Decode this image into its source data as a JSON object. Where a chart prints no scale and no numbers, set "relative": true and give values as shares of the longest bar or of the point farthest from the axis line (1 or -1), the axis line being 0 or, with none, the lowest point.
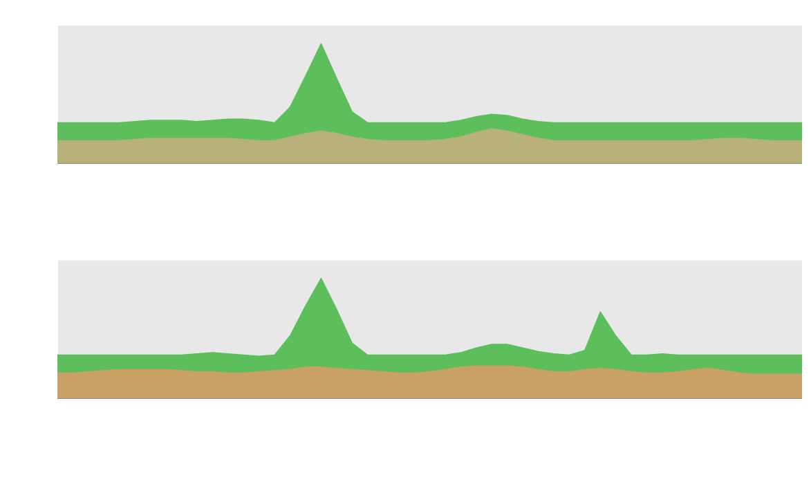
{
  "chart_data": [
    {
      "type": "area",
      "relative": true,
      "categories": [
        null,
        null,
        null,
        null,
        null,
        null,
        null,
        null,
        null,
        null,
        null,
        null,
        null,
        null,
        null,
        null,
        null,
        null,
        null,
        null,
        null,
        null,
        null,
        null,
        null,
        null,
        null,
        null,
        null,
        null,
        null,
        null,
        null,
        null,
        null,
        null,
        null,
        null,
        null,
        null,
        null,
        null,
        null,
        null,
        null,
        null,
        null,
        null,
        null
      ],
      "series": [
        {
          "color": "#5cbf5c",
          "values": [
            0.34,
            0.34,
            0.34,
            0.34,
            0.34,
            0.35,
            0.36,
            0.36,
            0.36,
            0.35,
            0.36,
            0.37,
            0.37,
            0.36,
            0.34,
            0.47,
            0.73,
            1,
            0.71,
            0.43,
            0.34,
            0.34,
            0.34,
            0.34,
            0.34,
            0.34,
            0.36,
            0.39,
            0.41,
            0.4,
            0.37,
            0.35,
            0.34,
            0.34,
            0.34,
            0.34,
            0.34,
            0.34,
            0.34,
            0.34,
            0.34,
            0.34,
            0.34,
            0.34,
            0.34,
            0.34,
            0.34,
            0.34,
            0.34
          ]
        },
        {
          "color": "#b8b27a",
          "values": [
            0.19,
            0.19,
            0.19,
            0.19,
            0.19,
            0.2,
            0.21,
            0.21,
            0.21,
            0.21,
            0.21,
            0.21,
            0.2,
            0.19,
            0.19,
            0.22,
            0.25,
            0.27,
            0.25,
            0.22,
            0.2,
            0.19,
            0.19,
            0.19,
            0.19,
            0.2,
            0.22,
            0.26,
            0.29,
            0.27,
            0.24,
            0.21,
            0.19,
            0.19,
            0.19,
            0.19,
            0.19,
            0.19,
            0.19,
            0.19,
            0.19,
            0.19,
            0.2,
            0.21,
            0.21,
            0.2,
            0.19,
            0.19,
            0.19
          ]
        }
      ]
    },
    {
      "type": "area",
      "relative": true,
      "categories": [
        null,
        null,
        null,
        null,
        null,
        null,
        null,
        null,
        null,
        null,
        null,
        null,
        null,
        null,
        null,
        null,
        null,
        null,
        null,
        null,
        null,
        null,
        null,
        null,
        null,
        null,
        null,
        null,
        null,
        null,
        null,
        null,
        null,
        null,
        null,
        null,
        null,
        null,
        null,
        null,
        null,
        null,
        null,
        null,
        null,
        null,
        null,
        null,
        null
      ],
      "series": [
        {
          "color": "#5cbf5c",
          "values": [
            0.36,
            0.36,
            0.36,
            0.36,
            0.36,
            0.36,
            0.36,
            0.36,
            0.36,
            0.37,
            0.38,
            0.37,
            0.36,
            0.35,
            0.36,
            0.52,
            0.77,
            1,
            0.74,
            0.46,
            0.36,
            0.36,
            0.36,
            0.36,
            0.36,
            0.36,
            0.38,
            0.42,
            0.45,
            0.45,
            0.42,
            0.39,
            0.37,
            0.36,
            0.4,
            0.72,
            0.52,
            0.36,
            0.36,
            0.37,
            0.36,
            0.36,
            0.36,
            0.36,
            0.36,
            0.36,
            0.36,
            0.36,
            0.36
          ]
        },
        {
          "color": "#c9a066",
          "values": [
            0.21,
            0.21,
            0.22,
            0.23,
            0.24,
            0.24,
            0.24,
            0.24,
            0.23,
            0.22,
            0.22,
            0.21,
            0.21,
            0.22,
            0.23,
            0.24,
            0.26,
            0.26,
            0.25,
            0.24,
            0.23,
            0.22,
            0.21,
            0.21,
            0.22,
            0.24,
            0.26,
            0.27,
            0.27,
            0.27,
            0.26,
            0.24,
            0.22,
            0.22,
            0.24,
            0.25,
            0.24,
            0.22,
            0.21,
            0.21,
            0.22,
            0.24,
            0.25,
            0.23,
            0.21,
            0.2,
            0.2,
            0.2,
            0.2
          ]
        }
      ]
    }
  ]
}
